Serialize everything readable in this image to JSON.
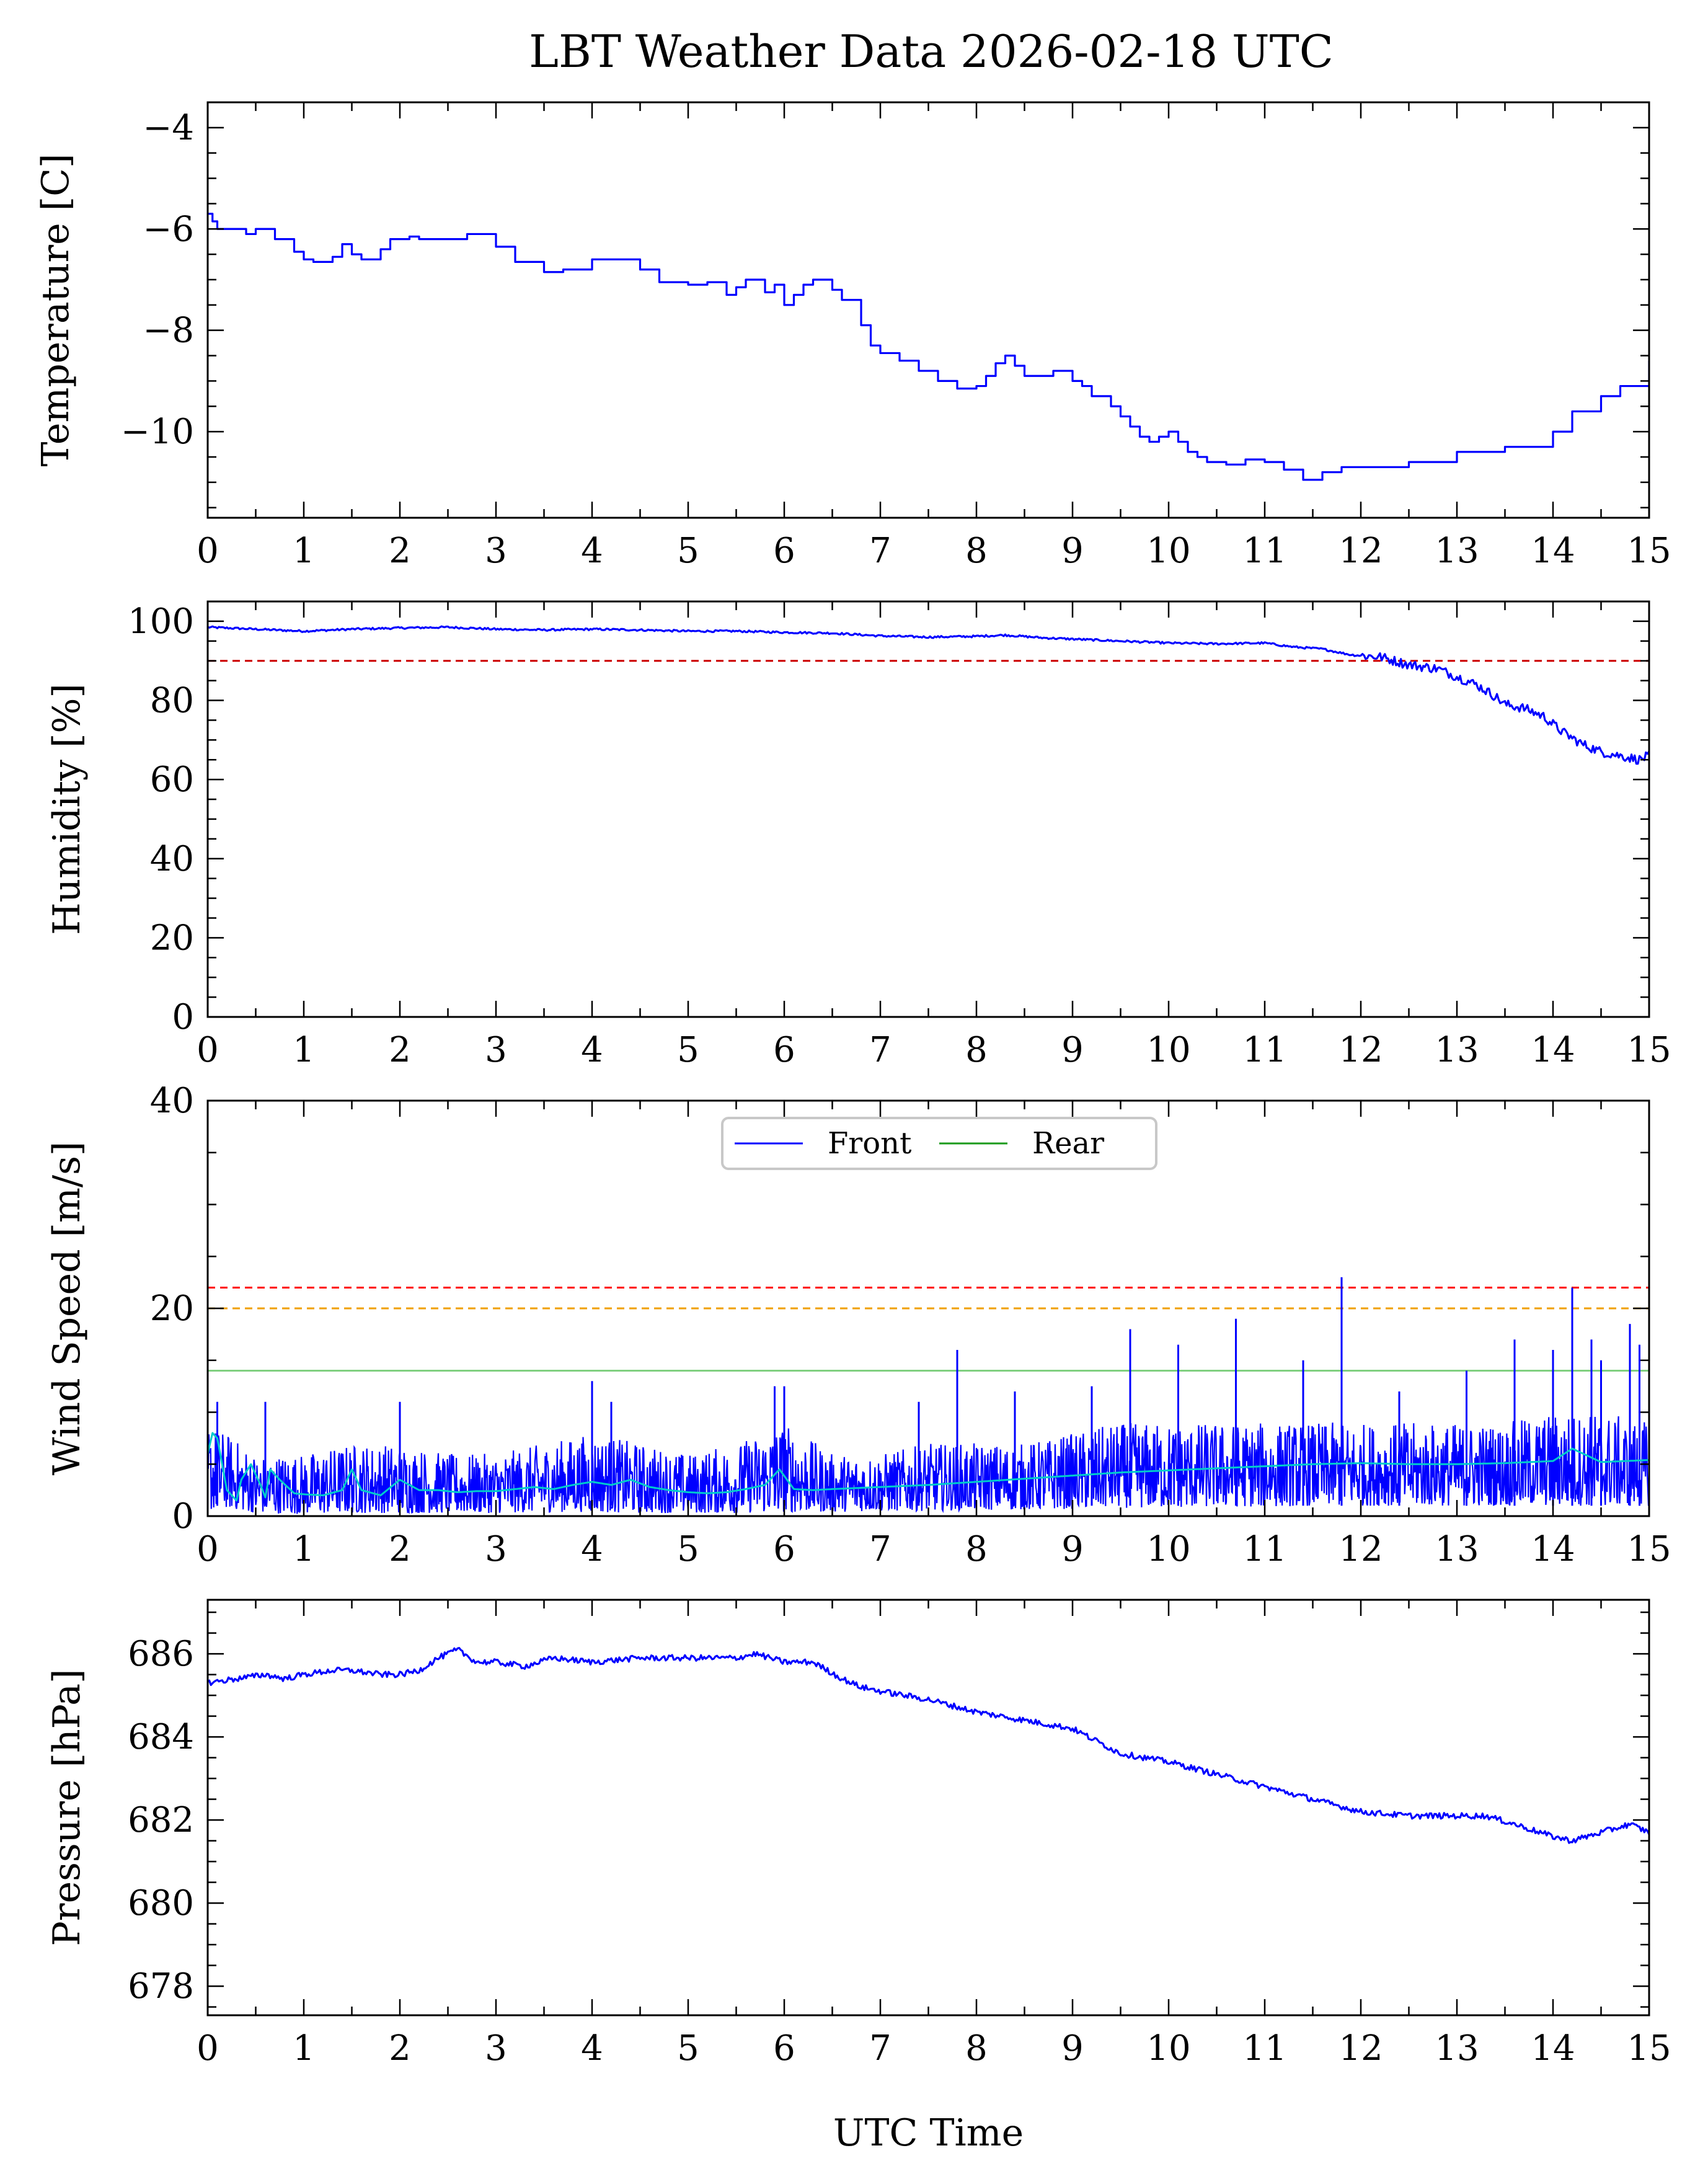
{
  "title": "LBT Weather Data 2026-02-18 UTC",
  "chart_data": [
    {
      "type": "line",
      "name": "temperature",
      "ylabel": "Temperature [C]",
      "xlabel": "",
      "xlim": [
        0,
        15
      ],
      "ylim": [
        -11.7,
        -3.5
      ],
      "xticks": [
        0,
        1,
        2,
        3,
        4,
        5,
        6,
        7,
        8,
        9,
        10,
        11,
        12,
        13,
        14,
        15
      ],
      "yticks": [
        -10,
        -8,
        -6,
        -4
      ],
      "ytick_labels": [
        "−10",
        "−8",
        "−6",
        "−4"
      ],
      "series": [
        {
          "name": "Temperature",
          "color": "#0000ff",
          "step": true,
          "x": [
            0,
            0.05,
            0.1,
            0.3,
            0.4,
            0.5,
            0.7,
            0.9,
            1.0,
            1.1,
            1.3,
            1.4,
            1.5,
            1.6,
            1.8,
            1.9,
            2.1,
            2.2,
            2.5,
            2.7,
            3.0,
            3.2,
            3.5,
            3.7,
            4.0,
            4.3,
            4.5,
            4.7,
            4.9,
            5.0,
            5.2,
            5.4,
            5.5,
            5.6,
            5.8,
            5.9,
            6.0,
            6.1,
            6.2,
            6.3,
            6.4,
            6.5,
            6.6,
            6.7,
            6.8,
            6.9,
            7.0,
            7.2,
            7.4,
            7.6,
            7.8,
            8.0,
            8.1,
            8.2,
            8.3,
            8.4,
            8.5,
            8.6,
            8.8,
            9.0,
            9.1,
            9.2,
            9.4,
            9.5,
            9.6,
            9.7,
            9.8,
            9.9,
            10.0,
            10.1,
            10.2,
            10.3,
            10.4,
            10.6,
            10.8,
            11.0,
            11.2,
            11.4,
            11.6,
            11.8,
            12.0,
            12.5,
            13.0,
            13.5,
            13.7,
            14.0,
            14.2,
            14.5,
            14.7,
            15.0
          ],
          "y": [
            -5.7,
            -5.85,
            -6.0,
            -6.0,
            -6.1,
            -6.0,
            -6.2,
            -6.45,
            -6.6,
            -6.65,
            -6.55,
            -6.3,
            -6.5,
            -6.6,
            -6.4,
            -6.2,
            -6.15,
            -6.2,
            -6.2,
            -6.1,
            -6.35,
            -6.65,
            -6.85,
            -6.8,
            -6.6,
            -6.6,
            -6.8,
            -7.05,
            -7.05,
            -7.1,
            -7.05,
            -7.3,
            -7.15,
            -7.0,
            -7.25,
            -7.1,
            -7.5,
            -7.3,
            -7.1,
            -7.0,
            -7.0,
            -7.2,
            -7.4,
            -7.4,
            -7.9,
            -8.3,
            -8.45,
            -8.6,
            -8.8,
            -9.0,
            -9.15,
            -9.1,
            -8.9,
            -8.65,
            -8.5,
            -8.7,
            -8.9,
            -8.9,
            -8.8,
            -9.0,
            -9.1,
            -9.3,
            -9.5,
            -9.7,
            -9.9,
            -10.1,
            -10.2,
            -10.1,
            -10.0,
            -10.2,
            -10.4,
            -10.5,
            -10.6,
            -10.65,
            -10.55,
            -10.6,
            -10.75,
            -10.95,
            -10.8,
            -10.7,
            -10.7,
            -10.6,
            -10.4,
            -10.3,
            -10.3,
            -10.0,
            -9.6,
            -9.3,
            -9.1,
            -8.6
          ]
        }
      ]
    },
    {
      "type": "line",
      "name": "humidity",
      "ylabel": "Humidity [%]",
      "xlabel": "",
      "xlim": [
        0,
        15
      ],
      "ylim": [
        0,
        105
      ],
      "xticks": [
        0,
        1,
        2,
        3,
        4,
        5,
        6,
        7,
        8,
        9,
        10,
        11,
        12,
        13,
        14,
        15
      ],
      "yticks": [
        0,
        20,
        40,
        60,
        80,
        100
      ],
      "ytick_labels": [
        "0",
        "20",
        "40",
        "60",
        "80",
        "100"
      ],
      "threshold": {
        "y": 90,
        "color": "#cc0000"
      },
      "series": [
        {
          "name": "Humidity",
          "color": "#0000ff",
          "x": [
            0,
            0.5,
            1.0,
            1.5,
            2.0,
            2.5,
            3.0,
            3.5,
            4.0,
            4.5,
            5.0,
            5.5,
            6.0,
            6.5,
            7.0,
            7.5,
            8.0,
            8.3,
            8.7,
            9.0,
            9.5,
            10.0,
            10.5,
            11.0,
            11.3,
            11.6,
            11.9,
            12.2,
            12.5,
            12.8,
            13.0,
            13.2,
            13.4,
            13.5,
            13.7,
            13.9,
            14.1,
            14.3,
            14.5,
            14.7,
            14.9,
            15.0
          ],
          "y": [
            98.5,
            98,
            97.5,
            98,
            98.3,
            98.5,
            98,
            97.8,
            98,
            97.8,
            97.5,
            97.5,
            97.2,
            97,
            96.3,
            96,
            96.2,
            96.5,
            95.8,
            95.5,
            95,
            94.5,
            94.3,
            94.5,
            93.5,
            93,
            91.5,
            91,
            89,
            88,
            86,
            84,
            81,
            79,
            78,
            76,
            72,
            69,
            67,
            66,
            65,
            66
          ]
        }
      ]
    },
    {
      "type": "line",
      "name": "wind_speed",
      "ylabel": "Wind Speed [m/s]",
      "xlabel": "",
      "xlim": [
        0,
        15
      ],
      "ylim": [
        0,
        40
      ],
      "xticks": [
        0,
        1,
        2,
        3,
        4,
        5,
        6,
        7,
        8,
        9,
        10,
        11,
        12,
        13,
        14,
        15
      ],
      "yticks": [
        0,
        20,
        40
      ],
      "ytick_labels": [
        "0",
        "20",
        "40"
      ],
      "thresholds": [
        {
          "y": 22,
          "color": "#ff0000"
        },
        {
          "y": 20,
          "color": "#f0a000"
        },
        {
          "y": 14,
          "color": "#80d080"
        }
      ],
      "legend": {
        "placement": "top-center",
        "entries": [
          "Front",
          "Rear"
        ]
      },
      "series": [
        {
          "name": "Front",
          "color": "#0000ff",
          "style": "noisy-band",
          "x": [
            0,
            0.2,
            0.5,
            1,
            1.5,
            2,
            2.5,
            3,
            3.5,
            4,
            4.5,
            5,
            5.5,
            6,
            6.5,
            7,
            7.5,
            8,
            8.5,
            9,
            9.5,
            10,
            10.5,
            11,
            11.5,
            12,
            12.5,
            13,
            13.5,
            14,
            14.5,
            15
          ],
          "lower": [
            0.5,
            0.8,
            0.3,
            0.2,
            0.3,
            0.3,
            0.3,
            0.3,
            0.4,
            0.4,
            0.3,
            0.3,
            0.3,
            0.4,
            0.4,
            0.5,
            0.5,
            0.6,
            0.6,
            0.7,
            0.8,
            0.8,
            0.9,
            0.9,
            1.0,
            1.0,
            1.0,
            1.0,
            1.0,
            1.0,
            1.0,
            1.0
          ],
          "upper": [
            9,
            8,
            6,
            6,
            7,
            7,
            6,
            6,
            7,
            8,
            7,
            6,
            7,
            9,
            6,
            6,
            7,
            7,
            7,
            8,
            9,
            9,
            9,
            9,
            9,
            9,
            9,
            9,
            9,
            10,
            10,
            9
          ],
          "spikes": [
            {
              "x": 0.1,
              "y": 11
            },
            {
              "x": 0.6,
              "y": 11
            },
            {
              "x": 2.0,
              "y": 11
            },
            {
              "x": 4.0,
              "y": 13
            },
            {
              "x": 4.2,
              "y": 11
            },
            {
              "x": 5.9,
              "y": 12.5
            },
            {
              "x": 6.0,
              "y": 12.5
            },
            {
              "x": 7.4,
              "y": 11
            },
            {
              "x": 7.8,
              "y": 16
            },
            {
              "x": 8.4,
              "y": 12
            },
            {
              "x": 9.2,
              "y": 12.5
            },
            {
              "x": 9.6,
              "y": 18
            },
            {
              "x": 10.1,
              "y": 16.5
            },
            {
              "x": 10.7,
              "y": 19
            },
            {
              "x": 11.4,
              "y": 15
            },
            {
              "x": 11.8,
              "y": 23
            },
            {
              "x": 12.4,
              "y": 12
            },
            {
              "x": 13.1,
              "y": 14
            },
            {
              "x": 13.6,
              "y": 17
            },
            {
              "x": 14.0,
              "y": 16
            },
            {
              "x": 14.2,
              "y": 22
            },
            {
              "x": 14.4,
              "y": 17
            },
            {
              "x": 14.5,
              "y": 15
            },
            {
              "x": 14.8,
              "y": 18.5
            },
            {
              "x": 14.9,
              "y": 16.5
            }
          ]
        },
        {
          "name": "Rear",
          "color": "#00cccc",
          "x": [
            0,
            0.05,
            0.1,
            0.15,
            0.2,
            0.3,
            0.35,
            0.45,
            0.55,
            0.6,
            0.65,
            0.75,
            0.9,
            1.0,
            1.2,
            1.4,
            1.5,
            1.6,
            1.8,
            2.0,
            2.2,
            2.4,
            2.6,
            2.8,
            3.0,
            3.2,
            3.4,
            3.6,
            3.8,
            4.0,
            4.2,
            4.4,
            4.6,
            4.8,
            5.0,
            5.2,
            5.4,
            5.6,
            5.8,
            5.95,
            6.1,
            6.3,
            6.5,
            7.0,
            7.5,
            8.0,
            8.5,
            9.0,
            9.5,
            10.0,
            10.5,
            11.0,
            11.5,
            12.0,
            12.5,
            13.0,
            13.5,
            14.0,
            14.2,
            14.5,
            15.0
          ],
          "y": [
            6,
            8,
            7.5,
            5,
            2.5,
            1.5,
            3.5,
            5,
            3,
            1.8,
            4.5,
            3.5,
            2.2,
            2.1,
            2.0,
            2.5,
            4.5,
            2.5,
            2.0,
            3.5,
            2.5,
            2.5,
            2.3,
            2.4,
            2.4,
            2.6,
            2.8,
            2.6,
            3.0,
            3.3,
            3.0,
            3.5,
            2.8,
            2.5,
            2.3,
            2.2,
            2.3,
            2.6,
            3.0,
            4.5,
            2.6,
            2.5,
            2.6,
            2.8,
            3.0,
            3.3,
            3.6,
            3.9,
            4.2,
            4.4,
            4.6,
            4.8,
            5.0,
            5.1,
            5.0,
            5.0,
            5.1,
            5.3,
            6.5,
            5.2,
            5.4
          ]
        }
      ]
    },
    {
      "type": "line",
      "name": "pressure",
      "ylabel": "Pressure [hPa]",
      "xlabel": "UTC Time",
      "xlim": [
        0,
        15
      ],
      "ylim": [
        677.3,
        687.3
      ],
      "xticks": [
        0,
        1,
        2,
        3,
        4,
        5,
        6,
        7,
        8,
        9,
        10,
        11,
        12,
        13,
        14,
        15
      ],
      "yticks": [
        678,
        680,
        682,
        684,
        686
      ],
      "ytick_labels": [
        "678",
        "680",
        "682",
        "684",
        "686"
      ],
      "series": [
        {
          "name": "Pressure",
          "color": "#0000ff",
          "x": [
            0,
            0.3,
            0.6,
            0.8,
            1.0,
            1.3,
            1.5,
            1.8,
            2.0,
            2.2,
            2.4,
            2.6,
            2.8,
            3.0,
            3.3,
            3.6,
            4.0,
            4.5,
            5.0,
            5.5,
            5.7,
            6.0,
            6.3,
            6.6,
            6.8,
            7.0,
            7.5,
            8.0,
            8.5,
            9.0,
            9.5,
            10.0,
            10.5,
            11.0,
            11.5,
            12.0,
            12.5,
            13.0,
            13.3,
            13.6,
            14.0,
            14.2,
            14.5,
            14.8,
            15.0
          ],
          "y": [
            685.3,
            685.4,
            685.5,
            685.4,
            685.5,
            685.6,
            685.6,
            685.5,
            685.5,
            685.6,
            685.9,
            686.1,
            685.8,
            685.8,
            685.7,
            685.9,
            685.8,
            685.9,
            685.9,
            685.9,
            686.0,
            685.8,
            685.8,
            685.4,
            685.2,
            685.1,
            684.9,
            684.6,
            684.4,
            684.2,
            683.6,
            683.4,
            683.1,
            682.8,
            682.5,
            682.2,
            682.1,
            682.1,
            682.1,
            681.9,
            681.6,
            681.5,
            681.7,
            681.9,
            681.7
          ]
        }
      ]
    }
  ]
}
